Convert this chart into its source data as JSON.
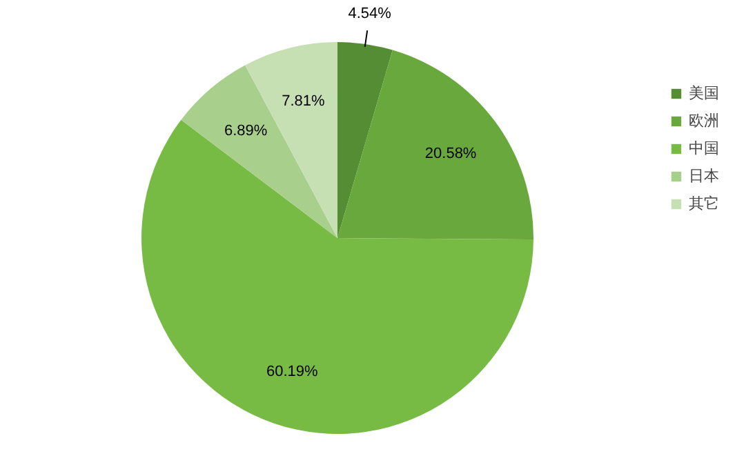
{
  "chart_data": {
    "type": "pie",
    "categories": [
      "美国",
      "欧洲",
      "中国",
      "日本",
      "其它"
    ],
    "values": [
      4.54,
      20.58,
      60.19,
      6.89,
      7.81
    ],
    "colors": [
      "#548d34",
      "#68a83c",
      "#78bb44",
      "#a8d08c",
      "#c6e0b4"
    ],
    "value_labels": [
      "4.54%",
      "20.58%",
      "60.19%",
      "6.89%",
      "7.81%"
    ],
    "legend": "right"
  }
}
